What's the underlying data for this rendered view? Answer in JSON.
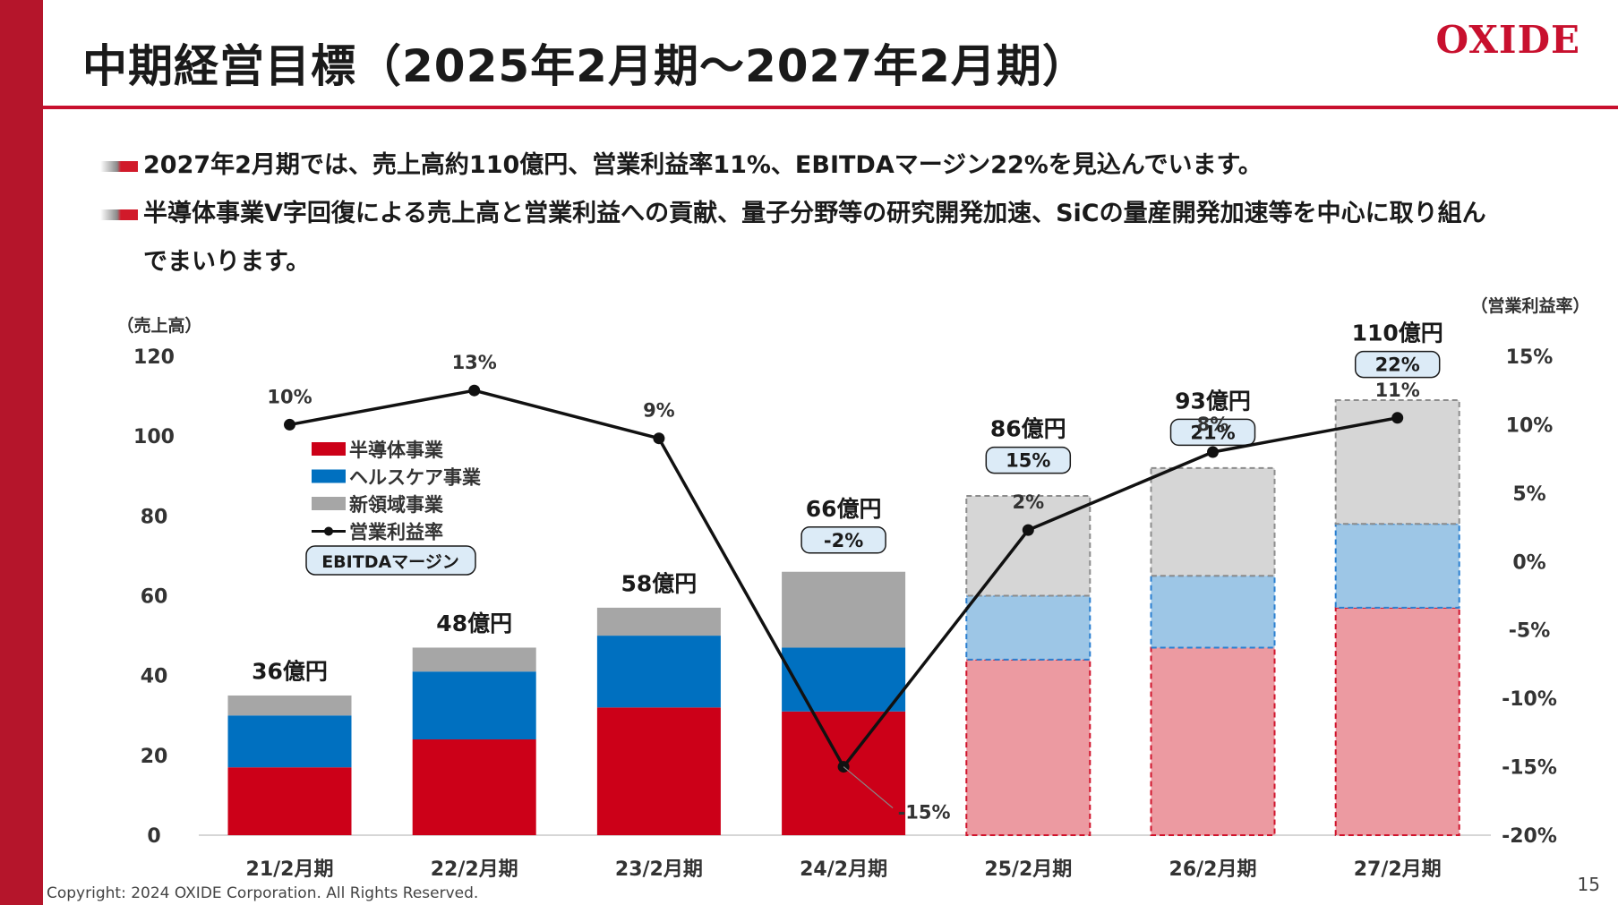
{
  "header": {
    "title": "中期経営目標（2025年2月期～2027年2月期）",
    "logo": "OXIDE"
  },
  "bullets": [
    "2027年2月期では、売上高約110億円、営業利益率11%、EBITDAマージン22%を見込んでいます。",
    "半導体事業V字回復による売上高と営業利益への貢献、量子分野等の研究開発加速、SiCの量産開発加速等を中心に取り組んでまいります。"
  ],
  "footer": {
    "copyright": "Copyright: 2024 OXIDE Corporation. All Rights Reserved.",
    "page_number": "15"
  },
  "colors": {
    "accent": "#c8102e",
    "semiconductor": "#cc0018",
    "healthcare": "#0070c0",
    "new_business": "#a6a6a6",
    "semiconductor_forecast": "#ec9aa1",
    "healthcare_forecast": "#9dc6e6",
    "new_business_forecast": "#d6d6d6",
    "ebitda_box": "#dcebf7"
  },
  "chart_data": {
    "type": "bar",
    "stacked": true,
    "left_axis_label": "（売上高）",
    "right_axis_label": "（営業利益率）",
    "ylim": [
      0,
      120
    ],
    "y_ticks": [
      "0",
      "20",
      "40",
      "60",
      "80",
      "100",
      "120"
    ],
    "y2lim": [
      -20,
      15
    ],
    "y2_ticks": [
      "-20%",
      "-15%",
      "-10%",
      "-5%",
      "0%",
      "5%",
      "10%",
      "15%"
    ],
    "categories": [
      "21/2月期",
      "22/2月期",
      "23/2月期",
      "24/2月期",
      "25/2月期",
      "26/2月期",
      "27/2月期"
    ],
    "forecast_from_index": 4,
    "series": [
      {
        "name": "半導体事業",
        "values": [
          17,
          24,
          32,
          31,
          44,
          47,
          57
        ]
      },
      {
        "name": "ヘルスケア事業",
        "values": [
          13,
          17,
          18,
          16,
          16,
          18,
          21
        ]
      },
      {
        "name": "新領域事業",
        "values": [
          5,
          6,
          7,
          19,
          25,
          27,
          31
        ]
      }
    ],
    "totals_labels": [
      "36億円",
      "48億円",
      "58億円",
      "66億円",
      "86億円",
      "93億円",
      "110億円"
    ],
    "totals": [
      36,
      48,
      58,
      66,
      86,
      93,
      110
    ],
    "ebitda_margin_labels": [
      "",
      "",
      "",
      "-2%",
      "15%",
      "21%",
      "22%"
    ],
    "operating_margin": {
      "name": "営業利益率",
      "values": [
        10,
        12.5,
        9,
        -15,
        2.3,
        8,
        10.5
      ],
      "labels": [
        "10%",
        "13%",
        "9%",
        "-15%",
        "2%",
        "8%",
        "11%"
      ]
    },
    "legend": {
      "placement": "top-left",
      "items": [
        "半導体事業",
        "ヘルスケア事業",
        "新領域事業",
        "営業利益率"
      ],
      "ebitda_label": "EBITDAマージン"
    }
  }
}
